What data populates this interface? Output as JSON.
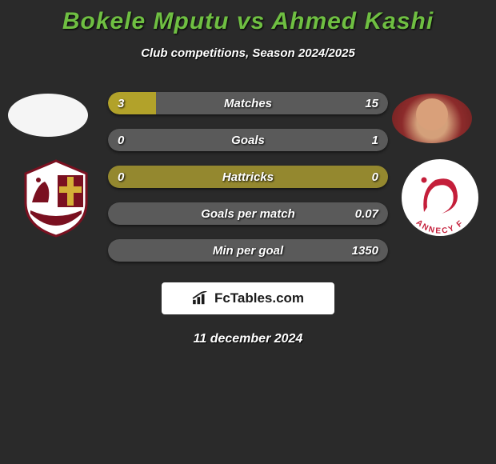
{
  "title": {
    "player1": "Bokele Mputu",
    "vs": "vs",
    "player2": "Ahmed Kashi",
    "color": "#6fbf42"
  },
  "subtitle": "Club competitions, Season 2024/2025",
  "colors": {
    "bar_left": "#b2a22a",
    "bar_right": "#5a5a5a",
    "bar_neutral": "#94882f",
    "background": "#2a2a2a"
  },
  "stats": [
    {
      "label": "Matches",
      "left_value": "3",
      "right_value": "15",
      "left_pct": 17,
      "right_pct": 83,
      "left_color": "#b2a22a",
      "right_color": "#5a5a5a"
    },
    {
      "label": "Goals",
      "left_value": "0",
      "right_value": "1",
      "left_pct": 0,
      "right_pct": 100,
      "left_color": "#b2a22a",
      "right_color": "#5a5a5a"
    },
    {
      "label": "Hattricks",
      "left_value": "0",
      "right_value": "0",
      "left_pct": 0,
      "right_pct": 0,
      "left_color": "#94882f",
      "right_color": "#94882f"
    },
    {
      "label": "Goals per match",
      "left_value": "",
      "right_value": "0.07",
      "left_pct": 0,
      "right_pct": 100,
      "left_color": "#b2a22a",
      "right_color": "#5a5a5a"
    },
    {
      "label": "Min per goal",
      "left_value": "",
      "right_value": "1350",
      "left_pct": 0,
      "right_pct": 100,
      "left_color": "#b2a22a",
      "right_color": "#5a5a5a"
    }
  ],
  "club_left": {
    "name": "FC Metz",
    "badge_bg": "#ffffff",
    "badge_accent": "#7a1020",
    "badge_cross": "#d4af37"
  },
  "club_right": {
    "name": "Annecy FC",
    "badge_bg": "#ffffff",
    "badge_accent": "#c41e3a",
    "badge_text": "ANNECY F"
  },
  "footer_brand": "FcTables.com",
  "date": "11 december 2024"
}
